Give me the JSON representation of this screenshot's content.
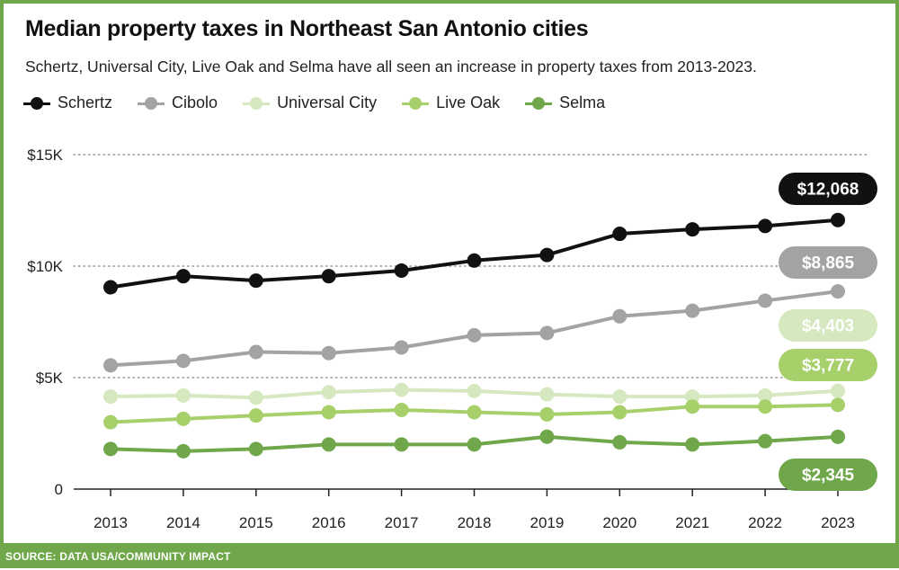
{
  "header": {
    "title": "Median property taxes in Northeast San Antonio cities",
    "subtitle": "Schertz, Universal City, Live Oak and Selma have all seen an increase in property taxes from 2013-2023."
  },
  "footer": {
    "source": "SOURCE: DATA USA/COMMUNITY IMPACT"
  },
  "colors": {
    "accent": "#6fa74a"
  },
  "chart_data": {
    "type": "line",
    "title": "Median property taxes in Northeast San Antonio cities",
    "xlabel": "",
    "ylabel": "",
    "x": [
      2013,
      2014,
      2015,
      2016,
      2017,
      2018,
      2019,
      2020,
      2021,
      2022,
      2023
    ],
    "ylim": [
      0,
      15000
    ],
    "yticks": [
      0,
      5000,
      10000,
      15000
    ],
    "ytick_labels": [
      "0",
      "$5K",
      "$10K",
      "$15K"
    ],
    "grid": "horizontal dotted",
    "legend_position": "top-left",
    "series": [
      {
        "name": "Schertz",
        "color": "#111111",
        "values": [
          9050,
          9550,
          9350,
          9550,
          9800,
          10250,
          10500,
          11450,
          11650,
          11800,
          12068
        ],
        "end_label": "$12,068",
        "label_text_color": "#ffffff"
      },
      {
        "name": "Cibolo",
        "color": "#a3a3a3",
        "values": [
          5550,
          5750,
          6150,
          6100,
          6350,
          6900,
          7000,
          7750,
          8000,
          8450,
          8865
        ],
        "end_label": "$8,865",
        "label_text_color": "#ffffff"
      },
      {
        "name": "Universal City",
        "color": "#d6e8bf",
        "values": [
          4150,
          4200,
          4100,
          4350,
          4450,
          4400,
          4250,
          4150,
          4150,
          4200,
          4403
        ],
        "end_label": "$4,403",
        "label_text_color": "#ffffff"
      },
      {
        "name": "Live Oak",
        "color": "#a7d06a",
        "values": [
          3000,
          3150,
          3300,
          3450,
          3550,
          3450,
          3350,
          3450,
          3700,
          3700,
          3777
        ],
        "end_label": "$3,777",
        "label_text_color": "#ffffff"
      },
      {
        "name": "Selma",
        "color": "#6fa74a",
        "values": [
          1800,
          1700,
          1800,
          2000,
          2000,
          2000,
          2350,
          2100,
          2000,
          2150,
          2345
        ],
        "end_label": "$2,345",
        "label_text_color": "#ffffff"
      }
    ]
  }
}
